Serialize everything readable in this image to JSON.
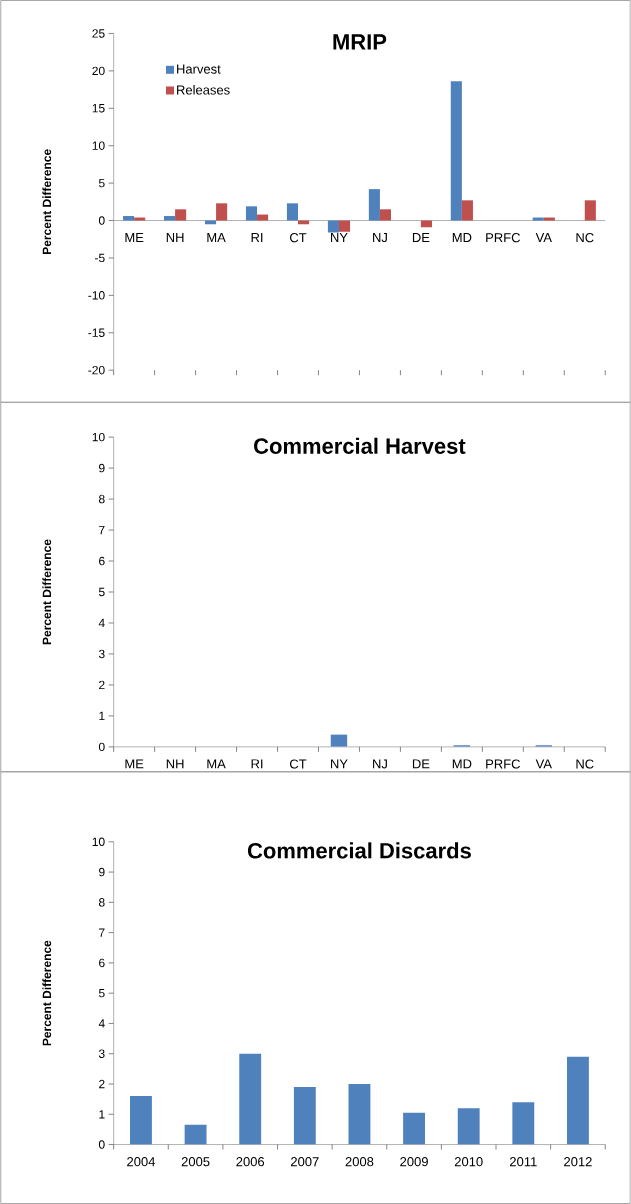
{
  "chart_data": [
    {
      "type": "bar",
      "title": "MRIP",
      "ylabel": "Percent Difference",
      "categories": [
        "ME",
        "NH",
        "MA",
        "RI",
        "CT",
        "NY",
        "NJ",
        "DE",
        "MD",
        "PRFC",
        "VA",
        "NC"
      ],
      "series": [
        {
          "name": "Harvest",
          "color": "#4f81bd",
          "values": [
            0.6,
            0.6,
            -0.5,
            1.9,
            2.3,
            -1.6,
            4.2,
            0,
            18.6,
            0,
            0.4,
            0
          ]
        },
        {
          "name": "Releases",
          "color": "#c0504d",
          "values": [
            0.4,
            1.5,
            2.3,
            0.8,
            -0.5,
            -1.5,
            1.5,
            -0.9,
            2.7,
            0,
            0.4,
            2.7
          ]
        }
      ],
      "ylim": [
        -20,
        25
      ],
      "yticks": [
        -20,
        -15,
        -10,
        -5,
        0,
        5,
        10,
        15,
        20,
        25
      ],
      "legend": "top left"
    },
    {
      "type": "bar",
      "title": "Commercial Harvest",
      "ylabel": "Percent Difference",
      "categories": [
        "ME",
        "NH",
        "MA",
        "RI",
        "CT",
        "NY",
        "NJ",
        "DE",
        "MD",
        "PRFC",
        "VA",
        "NC"
      ],
      "series": [
        {
          "color": "#4f81bd",
          "values": [
            0,
            0,
            0,
            0,
            0,
            0.4,
            0,
            0,
            0.05,
            0,
            0.05,
            0
          ]
        }
      ],
      "ylim": [
        0,
        10
      ],
      "yticks": [
        0,
        1,
        2,
        3,
        4,
        5,
        6,
        7,
        8,
        9,
        10
      ]
    },
    {
      "type": "bar",
      "title": "Commercial Discards",
      "ylabel": "Percent Difference",
      "categories": [
        "2004",
        "2005",
        "2006",
        "2007",
        "2008",
        "2009",
        "2010",
        "2011",
        "2012"
      ],
      "series": [
        {
          "color": "#4f81bd",
          "values": [
            1.6,
            0.65,
            3.0,
            1.9,
            2.0,
            1.05,
            1.2,
            1.4,
            2.9
          ]
        }
      ],
      "ylim": [
        0,
        10
      ],
      "yticks": [
        0,
        1,
        2,
        3,
        4,
        5,
        6,
        7,
        8,
        9,
        10
      ]
    }
  ]
}
